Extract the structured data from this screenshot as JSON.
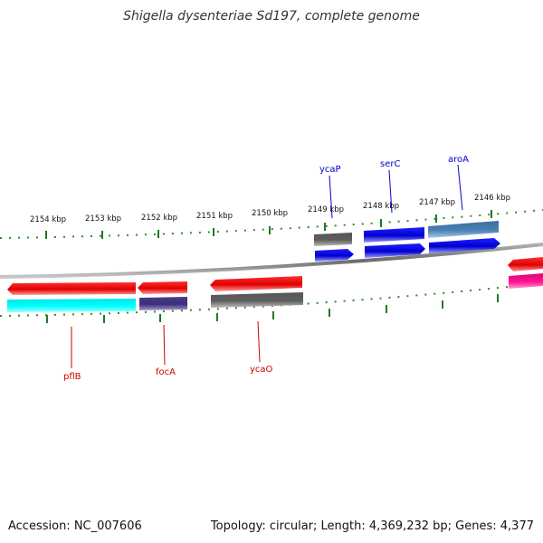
{
  "title": "Shigella dysenteriae Sd197, complete genome",
  "footer": {
    "accession": "Accession: NC_007606",
    "summary": "Topology: circular; Length: 4,369,232 bp; Genes: 4,377"
  },
  "colors": {
    "backbone": "#7a7a7a",
    "tick": "#2e8b2e",
    "forward_label": "#0000cc",
    "reverse_label": "#cc0000"
  },
  "ruler_labels": [
    "2154 kbp",
    "2153 kbp",
    "2152 kbp",
    "2151 kbp",
    "2150 kbp",
    "2149 kbp",
    "2148 kbp",
    "2147 kbp",
    "2146 kbp"
  ],
  "gene_labels": {
    "forward": [
      "ycaP",
      "serC",
      "aroA"
    ],
    "reverse": [
      "pflB",
      "focA",
      "ycaO"
    ]
  }
}
